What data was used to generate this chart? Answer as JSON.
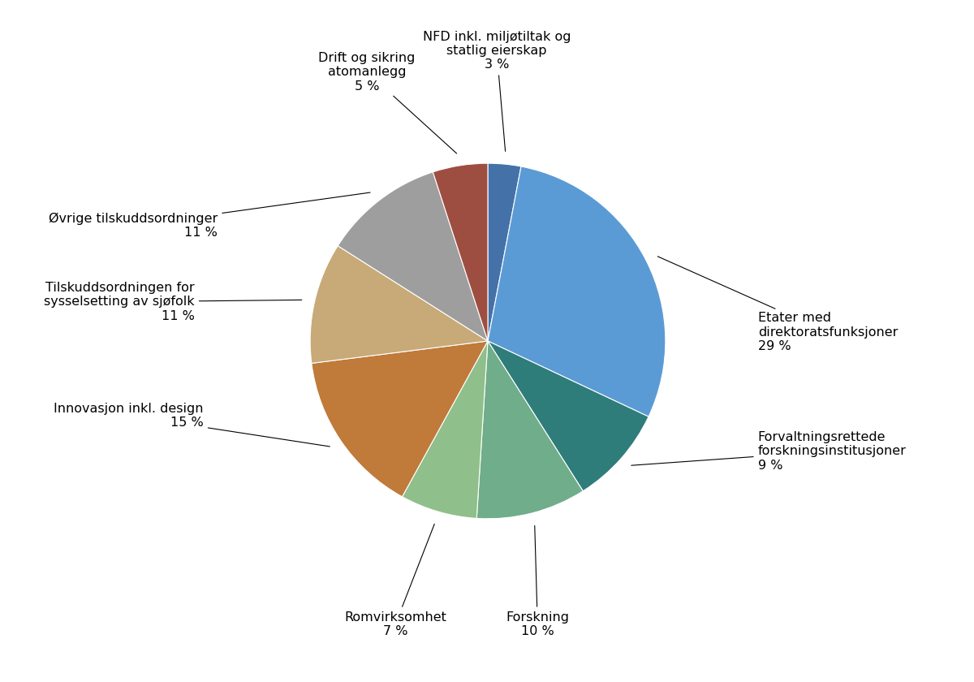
{
  "slices": [
    {
      "label": "NFD inkl. miljøtiltak og\nstatlig eierskap\n3 %",
      "pct": 3,
      "color": "#4472A8"
    },
    {
      "label": "Etater med\ndirektoratsfunksjoner\n29 %",
      "pct": 29,
      "color": "#5B9BD5"
    },
    {
      "label": "Forvaltningsrettede\nforskningsinstitusjoner\n9 %",
      "pct": 9,
      "color": "#2E7D7A"
    },
    {
      "label": "Forskning\n10 %",
      "pct": 10,
      "color": "#70AD8A"
    },
    {
      "label": "Romvirksomhet\n7 %",
      "pct": 7,
      "color": "#8FBF8A"
    },
    {
      "label": "Innovasjon inkl. design\n15 %",
      "pct": 15,
      "color": "#C07A3A"
    },
    {
      "label": "Tilskuddsordningen for\nsysselsetting av sjøfolk\n11 %",
      "pct": 11,
      "color": "#C8AA78"
    },
    {
      "label": "Øvrige tilskuddsordninger\n11 %",
      "pct": 11,
      "color": "#9E9E9E"
    },
    {
      "label": "Drift og sikring\natomanlegg\n5 %",
      "pct": 5,
      "color": "#9E4E40"
    }
  ],
  "background_color": "#FFFFFF",
  "font_size": 11.5,
  "wedge_edge_color": "white",
  "wedge_linewidth": 0.8
}
